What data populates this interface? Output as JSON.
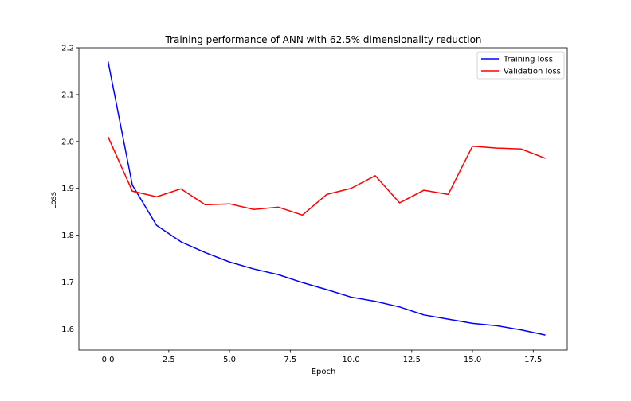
{
  "chart_data": {
    "type": "line",
    "title": "Training performance of ANN with 62.5% dimensionality reduction",
    "xlabel": "Epoch",
    "ylabel": "Loss",
    "xlim": [
      -1.2,
      18.9
    ],
    "ylim": [
      1.555,
      2.2
    ],
    "xticks": [
      0.0,
      2.5,
      5.0,
      7.5,
      10.0,
      12.5,
      15.0,
      17.5
    ],
    "xtick_labels": [
      "0.0",
      "2.5",
      "5.0",
      "7.5",
      "10.0",
      "12.5",
      "15.0",
      "17.5"
    ],
    "yticks": [
      1.6,
      1.7,
      1.8,
      1.9,
      2.0,
      2.1,
      2.2
    ],
    "ytick_labels": [
      "1.6",
      "1.7",
      "1.8",
      "1.9",
      "2.0",
      "2.1",
      "2.2"
    ],
    "grid": false,
    "legend_position": "top-right",
    "x": [
      0,
      1,
      2,
      3,
      4,
      5,
      6,
      7,
      8,
      9,
      10,
      11,
      12,
      13,
      14,
      15,
      16,
      17,
      18
    ],
    "series": [
      {
        "name": "Training loss",
        "color": "#0000ff",
        "values": [
          2.171,
          1.907,
          1.821,
          1.786,
          1.763,
          1.743,
          1.728,
          1.716,
          1.699,
          1.684,
          1.668,
          1.659,
          1.647,
          1.63,
          1.621,
          1.612,
          1.607,
          1.598,
          1.587
        ]
      },
      {
        "name": "Validation loss",
        "color": "#ff0000",
        "values": [
          2.01,
          1.894,
          1.882,
          1.899,
          1.865,
          1.867,
          1.855,
          1.86,
          1.843,
          1.887,
          1.9,
          1.927,
          1.869,
          1.896,
          1.887,
          1.99,
          1.986,
          1.984,
          1.964
        ]
      }
    ]
  }
}
